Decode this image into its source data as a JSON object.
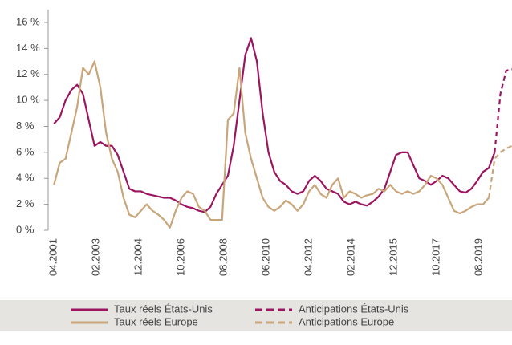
{
  "chart_data": {
    "type": "line",
    "x": [
      "2001-04",
      "2001-07",
      "2001-10",
      "2002-01",
      "2002-04",
      "2002-07",
      "2002-10",
      "2003-01",
      "2003-04",
      "2003-07",
      "2003-10",
      "2004-01",
      "2004-04",
      "2004-07",
      "2004-10",
      "2005-01",
      "2005-04",
      "2005-07",
      "2005-10",
      "2006-01",
      "2006-04",
      "2006-07",
      "2006-10",
      "2007-01",
      "2007-04",
      "2007-07",
      "2007-10",
      "2008-01",
      "2008-04",
      "2008-07",
      "2008-10",
      "2009-01",
      "2009-04",
      "2009-07",
      "2009-10",
      "2010-01",
      "2010-04",
      "2010-07",
      "2010-10",
      "2011-01",
      "2011-04",
      "2011-07",
      "2011-10",
      "2012-01",
      "2012-04",
      "2012-07",
      "2012-10",
      "2013-01",
      "2013-04",
      "2013-07",
      "2013-10",
      "2014-01",
      "2014-04",
      "2014-07",
      "2014-10",
      "2015-01",
      "2015-04",
      "2015-07",
      "2015-10",
      "2016-01",
      "2016-04",
      "2016-07",
      "2016-10",
      "2017-01",
      "2017-04",
      "2017-07",
      "2017-10",
      "2018-01",
      "2018-04",
      "2018-07",
      "2018-10",
      "2019-01",
      "2019-04",
      "2019-07",
      "2019-10",
      "2020-01",
      "2020-04",
      "2020-07",
      "2020-10",
      "2021-01"
    ],
    "xlim": [
      "2001-01",
      "2021-01"
    ],
    "xticks": [
      {
        "value": "2001-04",
        "label": "04.2001"
      },
      {
        "value": "2003-02",
        "label": "02.2003"
      },
      {
        "value": "2004-12",
        "label": "12.2004"
      },
      {
        "value": "2006-10",
        "label": "10.2006"
      },
      {
        "value": "2008-08",
        "label": "08.2008"
      },
      {
        "value": "2010-06",
        "label": "06.2010"
      },
      {
        "value": "2012-04",
        "label": "04.2012"
      },
      {
        "value": "2014-02",
        "label": "02.2014"
      },
      {
        "value": "2015-12",
        "label": "12.2015"
      },
      {
        "value": "2017-10",
        "label": "10.2017"
      },
      {
        "value": "2019-08",
        "label": "08.2019"
      }
    ],
    "ylim": [
      0,
      16
    ],
    "yticks": [
      {
        "value": 0,
        "label": "0 %"
      },
      {
        "value": 2,
        "label": "2 %"
      },
      {
        "value": 4,
        "label": "4 %"
      },
      {
        "value": 6,
        "label": "6 %"
      },
      {
        "value": 8,
        "label": "8 %"
      },
      {
        "value": 10,
        "label": "10 %"
      },
      {
        "value": 12,
        "label": "12 %"
      },
      {
        "value": 14,
        "label": "14 %"
      },
      {
        "value": 16,
        "label": "16 %"
      }
    ],
    "legend": "bottom",
    "series": [
      {
        "name": "Taux réels États-Unis",
        "color": "#9b1560",
        "dashed": false,
        "values": [
          8.2,
          8.7,
          10.0,
          10.8,
          11.2,
          10.5,
          8.5,
          6.5,
          6.8,
          6.5,
          6.5,
          5.8,
          4.5,
          3.2,
          3.0,
          3.0,
          2.8,
          2.7,
          2.6,
          2.5,
          2.5,
          2.3,
          2.0,
          1.8,
          1.7,
          1.5,
          1.4,
          1.8,
          2.8,
          3.5,
          4.2,
          6.5,
          10.0,
          13.5,
          14.8,
          13.0,
          9.0,
          6.0,
          4.5,
          3.8,
          3.5,
          3.0,
          2.8,
          3.0,
          3.8,
          4.2,
          3.8,
          3.2,
          3.0,
          2.8,
          2.2,
          2.0,
          2.2,
          2.0,
          1.9,
          2.2,
          2.6,
          3.2,
          4.5,
          5.8,
          6.0,
          6.0,
          5.0,
          4.0,
          3.8,
          3.5,
          3.8,
          4.2,
          4.0,
          3.5,
          3.0,
          2.9,
          3.2,
          3.8,
          4.5,
          4.8,
          6.0,
          null,
          null,
          null
        ]
      },
      {
        "name": "Anticipations États-Unis",
        "color": "#9b1560",
        "dashed": true,
        "values": [
          null,
          null,
          null,
          null,
          null,
          null,
          null,
          null,
          null,
          null,
          null,
          null,
          null,
          null,
          null,
          null,
          null,
          null,
          null,
          null,
          null,
          null,
          null,
          null,
          null,
          null,
          null,
          null,
          null,
          null,
          null,
          null,
          null,
          null,
          null,
          null,
          null,
          null,
          null,
          null,
          null,
          null,
          null,
          null,
          null,
          null,
          null,
          null,
          null,
          null,
          null,
          null,
          null,
          null,
          null,
          null,
          null,
          null,
          null,
          null,
          null,
          null,
          null,
          null,
          null,
          null,
          null,
          null,
          null,
          null,
          null,
          null,
          null,
          null,
          null,
          null,
          6.0,
          10.5,
          12.3,
          12.4
        ]
      },
      {
        "name": "Taux réels Europe",
        "color": "#c9a57a",
        "dashed": false,
        "values": [
          3.5,
          5.2,
          5.5,
          7.5,
          9.5,
          12.5,
          12.0,
          13.0,
          11.0,
          7.5,
          5.5,
          4.5,
          2.5,
          1.2,
          1.0,
          1.5,
          2.0,
          1.5,
          1.2,
          0.8,
          0.2,
          1.5,
          2.5,
          3.0,
          2.8,
          1.8,
          1.5,
          0.8,
          0.8,
          0.8,
          8.5,
          9.0,
          12.5,
          7.5,
          5.5,
          4.0,
          2.5,
          1.8,
          1.5,
          1.8,
          2.3,
          2.0,
          1.5,
          2.0,
          3.0,
          3.5,
          2.8,
          2.5,
          3.5,
          4.0,
          2.5,
          3.0,
          2.8,
          2.5,
          2.7,
          2.8,
          3.2,
          3.0,
          3.5,
          3.0,
          2.8,
          3.0,
          2.8,
          3.0,
          3.5,
          4.2,
          4.0,
          3.5,
          2.5,
          1.5,
          1.3,
          1.5,
          1.8,
          2.0,
          2.0,
          2.5,
          null,
          null,
          null,
          null
        ]
      },
      {
        "name": "Anticipations Europe",
        "color": "#c9a57a",
        "dashed": true,
        "values": [
          null,
          null,
          null,
          null,
          null,
          null,
          null,
          null,
          null,
          null,
          null,
          null,
          null,
          null,
          null,
          null,
          null,
          null,
          null,
          null,
          null,
          null,
          null,
          null,
          null,
          null,
          null,
          null,
          null,
          null,
          null,
          null,
          null,
          null,
          null,
          null,
          null,
          null,
          null,
          null,
          null,
          null,
          null,
          null,
          null,
          null,
          null,
          null,
          null,
          null,
          null,
          null,
          null,
          null,
          null,
          null,
          null,
          null,
          null,
          null,
          null,
          null,
          null,
          null,
          null,
          null,
          null,
          null,
          null,
          null,
          null,
          null,
          null,
          null,
          null,
          2.5,
          5.5,
          6.0,
          6.3,
          6.5
        ]
      }
    ]
  }
}
